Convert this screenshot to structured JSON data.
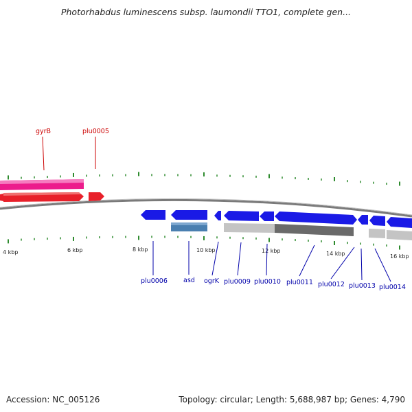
{
  "header": {
    "title": "Photorhabdus luminescens subsp. laumondii TTO1, complete gen..."
  },
  "footer": {
    "accession": "Accession: NC_005126",
    "summary": "Topology: circular; Length: 5,688,987 bp; Genes: 4,790"
  },
  "colors": {
    "backbone": "#7a7a7a",
    "tick": "#2e8b2e",
    "label_forward": "#cc0000",
    "label_reverse": "#0000aa"
  },
  "scale_labels": [
    "4 kbp",
    "6 kbp",
    "8 kbp",
    "10 kbp",
    "12 kbp",
    "14 kbp",
    "16 kbp"
  ],
  "gene_labels": {
    "forward": [
      "gyrB",
      "plu0005"
    ],
    "reverse": [
      "plu0006",
      "asd",
      "ogrK",
      "plu0009",
      "plu0010",
      "plu0011",
      "plu0012",
      "plu0013",
      "plu0014"
    ]
  },
  "features": [
    {
      "id": "gyrB",
      "strand": "+",
      "track": "gene",
      "kind": "arrow",
      "color": "#e8202a",
      "start_kbp": 3.7,
      "end_kbp": 6.3
    },
    {
      "id": "gyrB",
      "strand": "+",
      "track": "cds",
      "kind": "bar",
      "color": "#ec1c8c",
      "start_kbp": 3.7,
      "end_kbp": 6.3
    },
    {
      "id": "plu0005",
      "strand": "+",
      "track": "gene",
      "kind": "arrow",
      "color": "#e8202a",
      "start_kbp": 6.6,
      "end_kbp": 7.1
    },
    {
      "id": "plu0006",
      "strand": "-",
      "track": "gene",
      "kind": "arrow",
      "color": "#1a1ae6",
      "start_kbp": 8.2,
      "end_kbp": 8.9
    },
    {
      "id": "asd",
      "strand": "-",
      "track": "gene",
      "kind": "arrow",
      "color": "#1a1ae6",
      "start_kbp": 9.1,
      "end_kbp": 10.1
    },
    {
      "id": "asd",
      "strand": "-",
      "track": "cds",
      "kind": "bar",
      "color": "#4a7fb0",
      "start_kbp": 9.1,
      "end_kbp": 10.1
    },
    {
      "id": "ogrK",
      "strand": "-",
      "track": "gene",
      "kind": "arrow",
      "color": "#1a1ae6",
      "start_kbp": 10.3,
      "end_kbp": 10.5
    },
    {
      "id": "plu0009",
      "strand": "-",
      "track": "gene",
      "kind": "arrow",
      "color": "#1a1ae6",
      "start_kbp": 10.6,
      "end_kbp": 11.6
    },
    {
      "id": "plu0009",
      "strand": "-",
      "track": "cds",
      "kind": "bar",
      "color": "#c4c4c4",
      "start_kbp": 10.6,
      "end_kbp": 12.1
    },
    {
      "id": "plu0010",
      "strand": "-",
      "track": "gene",
      "kind": "arrow",
      "color": "#1a1ae6",
      "start_kbp": 11.7,
      "end_kbp": 12.1
    },
    {
      "id": "plu0011",
      "strand": "-",
      "track": "gene",
      "kind": "arrow",
      "color": "#1a1ae6",
      "start_kbp": 12.2,
      "end_kbp": 14.7
    },
    {
      "id": "plu0011",
      "strand": "-",
      "track": "cds",
      "kind": "bar",
      "color": "#6a6a6a",
      "start_kbp": 12.2,
      "end_kbp": 14.6
    },
    {
      "id": "plu0012",
      "strand": "-",
      "track": "gene",
      "kind": "arrow",
      "color": "#1a1ae6",
      "start_kbp": 14.8,
      "end_kbp": 15.0
    },
    {
      "id": "plu0013",
      "strand": "-",
      "track": "gene",
      "kind": "arrow",
      "color": "#1a1ae6",
      "start_kbp": 15.1,
      "end_kbp": 15.4
    },
    {
      "id": "plu0013",
      "strand": "-",
      "track": "cds",
      "kind": "bar",
      "color": "#c4c4c4",
      "start_kbp": 15.1,
      "end_kbp": 15.4
    },
    {
      "id": "plu0014",
      "strand": "-",
      "track": "gene",
      "kind": "arrow",
      "color": "#1a1ae6",
      "start_kbp": 15.5,
      "end_kbp": 16.5
    },
    {
      "id": "plu0014",
      "strand": "-",
      "track": "cds",
      "kind": "bar",
      "color": "#c4c4c4",
      "start_kbp": 15.5,
      "end_kbp": 16.5
    }
  ]
}
